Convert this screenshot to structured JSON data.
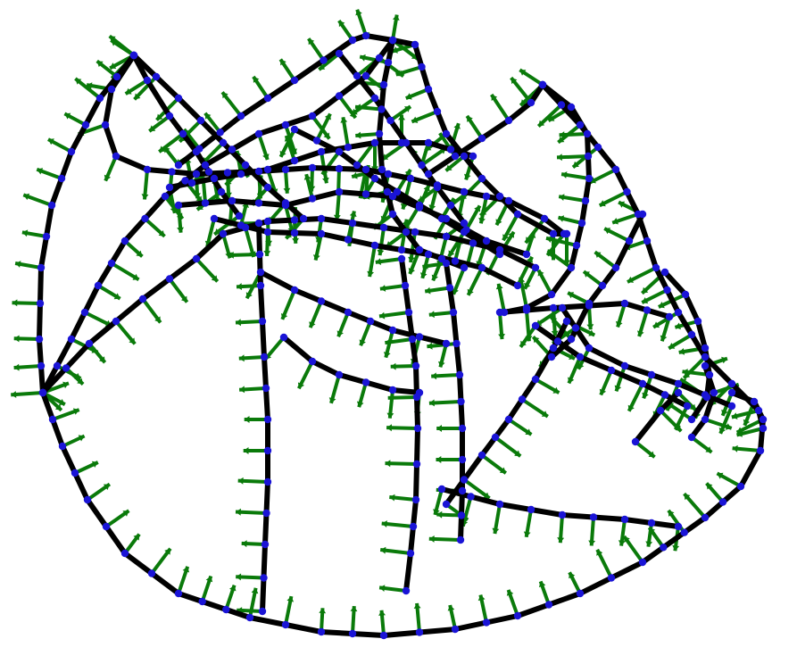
{
  "figure": {
    "type": "curve-normal-field-sketch",
    "colors": {
      "background": "#ffffff",
      "curve": "#000000",
      "sample_point": "#1a14d6",
      "normal_vector": "#0a7a0a"
    }
  }
}
